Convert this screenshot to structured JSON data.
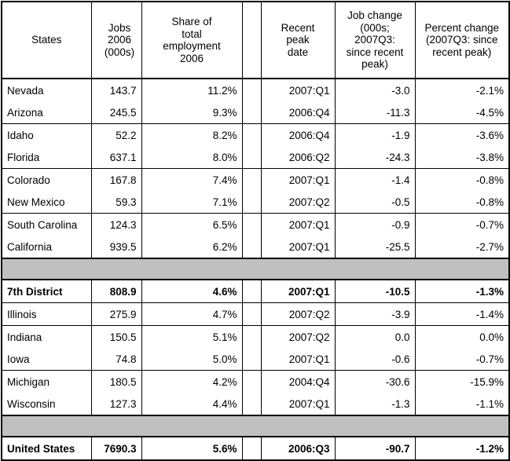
{
  "headers": {
    "state": "States",
    "jobs": "Jobs 2006 (000s)",
    "share": "Share of total employment 2006",
    "peak": "Recent peak date",
    "job_change": "Job change (000s; 2007Q3: since recent peak)",
    "pct_change": "Percent change (2007Q3: since recent peak)"
  },
  "rows": [
    {
      "state": "Nevada",
      "jobs": "143.7",
      "share": "11.2%",
      "peak": "2007:Q1",
      "job_change": "-3.0",
      "pct_change": "-2.1%"
    },
    {
      "state": "Arizona",
      "jobs": "245.5",
      "share": "9.3%",
      "peak": "2006:Q4",
      "job_change": "-11.3",
      "pct_change": "-4.5%"
    },
    {
      "state": "Idaho",
      "jobs": "52.2",
      "share": "8.2%",
      "peak": "2006:Q4",
      "job_change": "-1.9",
      "pct_change": "-3.6%"
    },
    {
      "state": "Florida",
      "jobs": "637.1",
      "share": "8.0%",
      "peak": "2006:Q2",
      "job_change": "-24.3",
      "pct_change": "-3.8%"
    },
    {
      "state": "Colorado",
      "jobs": "167.8",
      "share": "7.4%",
      "peak": "2007:Q1",
      "job_change": "-1.4",
      "pct_change": "-0.8%"
    },
    {
      "state": "New Mexico",
      "jobs": "59.3",
      "share": "7.1%",
      "peak": "2007:Q2",
      "job_change": "-0.5",
      "pct_change": "-0.8%"
    },
    {
      "state": "South Carolina",
      "jobs": "124.3",
      "share": "6.5%",
      "peak": "2007:Q1",
      "job_change": "-0.9",
      "pct_change": "-0.7%"
    },
    {
      "state": "California",
      "jobs": "939.5",
      "share": "6.2%",
      "peak": "2007:Q1",
      "job_change": "-25.5",
      "pct_change": "-2.7%"
    },
    {
      "state": "7th District",
      "jobs": "808.9",
      "share": "4.6%",
      "peak": "2007:Q1",
      "job_change": "-10.5",
      "pct_change": "-1.3%"
    },
    {
      "state": "Illinois",
      "jobs": "275.9",
      "share": "4.7%",
      "peak": "2007:Q2",
      "job_change": "-3.9",
      "pct_change": "-1.4%"
    },
    {
      "state": "Indiana",
      "jobs": "150.5",
      "share": "5.1%",
      "peak": "2007:Q2",
      "job_change": "0.0",
      "pct_change": "0.0%"
    },
    {
      "state": "Iowa",
      "jobs": "74.8",
      "share": "5.0%",
      "peak": "2007:Q1",
      "job_change": "-0.6",
      "pct_change": "-0.7%"
    },
    {
      "state": "Michigan",
      "jobs": "180.5",
      "share": "4.2%",
      "peak": "2004:Q4",
      "job_change": "-30.6",
      "pct_change": "-15.9%"
    },
    {
      "state": "Wisconsin",
      "jobs": "127.3",
      "share": "4.4%",
      "peak": "2007:Q1",
      "job_change": "-1.3",
      "pct_change": "-1.1%"
    },
    {
      "state": "United States",
      "jobs": "7690.3",
      "share": "5.6%",
      "peak": "2006:Q3",
      "job_change": "-90.7",
      "pct_change": "-1.2%"
    }
  ]
}
